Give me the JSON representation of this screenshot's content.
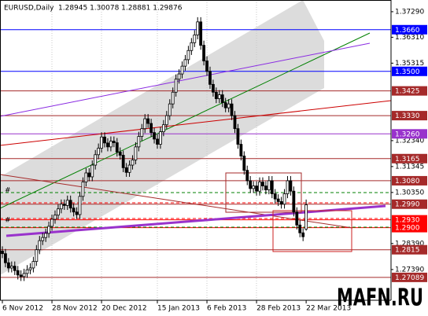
{
  "chart_data": {
    "type": "candlestick",
    "title": "EURUSD,Daily",
    "quote": "1.28945 1.30078 1.28881 1.29876",
    "watermark": "MAFN.RU",
    "categories": [
      "6 Nov 2012",
      null,
      null,
      null,
      null,
      null,
      null,
      null,
      null,
      null,
      null,
      null,
      null,
      null,
      null,
      null,
      "28 Nov 2012",
      null,
      null,
      null,
      null,
      null,
      null,
      null,
      null,
      null,
      null,
      null,
      null,
      null,
      null,
      null,
      "20 Dec 2012",
      null,
      null,
      null,
      null,
      null,
      null,
      null,
      null,
      null,
      null,
      null,
      null,
      null,
      null,
      null,
      null,
      null,
      "15 Jan 2013",
      null,
      null,
      null,
      null,
      null,
      null,
      null,
      null,
      null,
      null,
      null,
      null,
      null,
      null,
      null,
      "6 Feb 2013",
      null,
      null,
      null,
      null,
      null,
      null,
      null,
      null,
      null,
      null,
      null,
      null,
      null,
      null,
      null,
      "28 Feb 2013",
      null,
      null,
      null,
      null,
      null,
      null,
      null,
      null,
      null,
      null,
      null,
      null,
      null,
      null,
      null,
      "22 Mar 2013"
    ],
    "open": [
      1.281,
      1.28,
      1.2765,
      1.2745,
      1.2752,
      1.2735,
      1.2718,
      1.2712,
      1.2724,
      1.2738,
      1.2745,
      1.277,
      1.2815,
      1.285,
      1.2862,
      1.2878,
      1.2905,
      1.2932,
      1.2948,
      1.2972,
      1.299,
      1.2985,
      1.3005,
      1.2975,
      1.296,
      1.295,
      1.302,
      1.3075,
      1.311,
      1.3095,
      1.314,
      1.318,
      1.3205,
      1.3248,
      1.3225,
      1.321,
      1.3232,
      1.3226,
      1.319,
      1.3178,
      1.313,
      1.3112,
      1.314,
      1.316,
      1.321,
      1.325,
      1.328,
      1.3318,
      1.33,
      1.3265,
      1.324,
      1.322,
      1.3268,
      1.3295,
      1.333,
      1.3375,
      1.342,
      1.347,
      1.349,
      1.352,
      1.3545,
      1.358,
      1.361,
      1.364,
      1.369,
      1.36,
      1.354,
      1.35,
      1.345,
      1.342,
      1.3395,
      1.341,
      1.338,
      1.336,
      1.3375,
      1.333,
      1.328,
      1.322,
      1.3175,
      1.312,
      1.308,
      1.305,
      1.306,
      1.304,
      1.3075,
      1.306,
      1.3045,
      1.308,
      1.303,
      1.301,
      1.3,
      1.299,
      1.303,
      1.308,
      1.304,
      1.296,
      1.291,
      1.288,
      1.28945
    ],
    "high": [
      1.2828,
      1.2818,
      1.2783,
      1.277,
      1.277,
      1.2753,
      1.2736,
      1.2742,
      1.2756,
      1.2763,
      1.2788,
      1.2833,
      1.2868,
      1.288,
      1.2896,
      1.2923,
      1.295,
      1.2966,
      1.299,
      1.3008,
      1.3008,
      1.3023,
      1.3023,
      1.2993,
      1.2978,
      1.3038,
      1.3093,
      1.3128,
      1.3128,
      1.3158,
      1.3198,
      1.3223,
      1.3266,
      1.3266,
      1.3243,
      1.325,
      1.325,
      1.3244,
      1.3208,
      1.3196,
      1.3148,
      1.3158,
      1.3178,
      1.3228,
      1.3268,
      1.3298,
      1.3336,
      1.3336,
      1.3318,
      1.3283,
      1.3258,
      1.3286,
      1.3313,
      1.3348,
      1.3393,
      1.3438,
      1.3488,
      1.3508,
      1.3538,
      1.3563,
      1.3598,
      1.3628,
      1.3658,
      1.3708,
      1.3708,
      1.3618,
      1.3558,
      1.3518,
      1.3468,
      1.3438,
      1.3428,
      1.3428,
      1.3398,
      1.3393,
      1.3393,
      1.3348,
      1.3298,
      1.3238,
      1.3193,
      1.3138,
      1.3098,
      1.3078,
      1.3078,
      1.3093,
      1.3093,
      1.3078,
      1.3098,
      1.3098,
      1.3048,
      1.3028,
      1.3018,
      1.3048,
      1.3098,
      1.3098,
      1.3058,
      1.2978,
      1.2928,
      1.2898,
      1.30078
    ],
    "low": [
      1.2783,
      1.2748,
      1.2728,
      1.2728,
      1.2718,
      1.2701,
      1.2695,
      1.2695,
      1.2707,
      1.2721,
      1.2728,
      1.2753,
      1.2798,
      1.2833,
      1.2845,
      1.2861,
      1.2888,
      1.2915,
      1.2931,
      1.2955,
      1.2968,
      1.2968,
      1.2958,
      1.2943,
      1.2933,
      1.2933,
      1.3003,
      1.3058,
      1.3078,
      1.3078,
      1.3123,
      1.3163,
      1.3188,
      1.3208,
      1.3193,
      1.3193,
      1.3209,
      1.3173,
      1.3161,
      1.3113,
      1.3095,
      1.3095,
      1.3123,
      1.3143,
      1.3193,
      1.3233,
      1.3263,
      1.3283,
      1.3248,
      1.3223,
      1.3203,
      1.3203,
      1.3251,
      1.3278,
      1.3313,
      1.3358,
      1.3403,
      1.3453,
      1.3473,
      1.3503,
      1.3528,
      1.3563,
      1.3593,
      1.3623,
      1.3583,
      1.3523,
      1.3483,
      1.3433,
      1.3403,
      1.3378,
      1.3378,
      1.3363,
      1.3343,
      1.3343,
      1.3313,
      1.3263,
      1.3203,
      1.3158,
      1.3103,
      1.3063,
      1.3033,
      1.3033,
      1.3023,
      1.3023,
      1.3043,
      1.3028,
      1.3028,
      1.3013,
      1.2993,
      1.2983,
      1.2973,
      1.2973,
      1.3013,
      1.3023,
      1.2943,
      1.2893,
      1.2863,
      1.2848,
      1.28881
    ],
    "close": [
      1.28,
      1.2765,
      1.2745,
      1.2752,
      1.2735,
      1.2718,
      1.2712,
      1.2724,
      1.2738,
      1.2745,
      1.277,
      1.2815,
      1.285,
      1.2862,
      1.2878,
      1.2905,
      1.2932,
      1.2948,
      1.2972,
      1.299,
      1.2985,
      1.3005,
      1.2975,
      1.296,
      1.295,
      1.302,
      1.3075,
      1.311,
      1.3095,
      1.314,
      1.318,
      1.3205,
      1.3248,
      1.3225,
      1.321,
      1.3232,
      1.3226,
      1.319,
      1.3178,
      1.313,
      1.3112,
      1.314,
      1.316,
      1.321,
      1.325,
      1.328,
      1.3318,
      1.33,
      1.3265,
      1.324,
      1.322,
      1.3268,
      1.3295,
      1.333,
      1.3375,
      1.342,
      1.347,
      1.349,
      1.352,
      1.3545,
      1.358,
      1.361,
      1.364,
      1.369,
      1.36,
      1.354,
      1.35,
      1.345,
      1.342,
      1.3395,
      1.341,
      1.338,
      1.336,
      1.3375,
      1.333,
      1.328,
      1.322,
      1.3175,
      1.312,
      1.308,
      1.305,
      1.306,
      1.304,
      1.3075,
      1.306,
      1.3045,
      1.308,
      1.303,
      1.301,
      1.3,
      1.299,
      1.303,
      1.308,
      1.304,
      1.296,
      1.291,
      1.288,
      1.2865,
      1.29876
    ],
    "ylim": [
      1.2621,
      1.3774
    ],
    "yticks": [
      {
        "value": 1.3729,
        "label": "1.37290"
      },
      {
        "value": 1.3631,
        "label": "1.36310"
      },
      {
        "value": 1.35315,
        "label": "1.35315"
      },
      {
        "value": 1.3234,
        "label": "1.32340"
      },
      {
        "value": 1.31345,
        "label": "1.31345"
      },
      {
        "value": 1.3035,
        "label": "1.30350"
      },
      {
        "value": 1.2839,
        "label": "1.28390"
      },
      {
        "value": 1.2739,
        "label": "1.27390"
      }
    ],
    "levels": [
      {
        "value": 1.366,
        "label": "1.3660",
        "color": "#0000ff"
      },
      {
        "value": 1.35,
        "label": "1.3500",
        "color": "#0000ff"
      },
      {
        "value": 1.3425,
        "label": "1.3425",
        "color": "#a52a2a"
      },
      {
        "value": 1.333,
        "label": "1.3330",
        "color": "#a52a2a"
      },
      {
        "value": 1.326,
        "label": "1.3260",
        "color": "#9932cc"
      },
      {
        "value": 1.3165,
        "label": "1.3165",
        "color": "#a52a2a"
      },
      {
        "value": 1.308,
        "label": "1.3080",
        "color": "#a52a2a"
      },
      {
        "value": 1.299,
        "label": "1.2990",
        "color": "#a52a2a"
      },
      {
        "value": 1.293,
        "label": "1.2930",
        "color": "#ff0000"
      },
      {
        "value": 1.29,
        "label": "1.2900",
        "color": "#ff0000"
      },
      {
        "value": 1.2815,
        "label": "1.2815",
        "color": "#a52a2a"
      },
      {
        "value": 1.27089,
        "label": "1.27089",
        "color": "#a52a2a"
      }
    ]
  }
}
